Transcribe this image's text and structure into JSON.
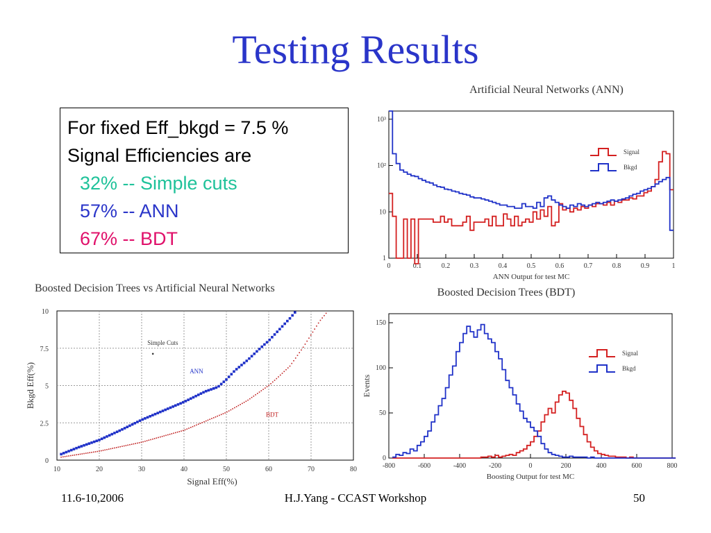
{
  "slide": {
    "title": "Testing Results",
    "box": {
      "line1": "For fixed Eff_bkgd = 7.5 %",
      "line2": "Signal Efficiencies are",
      "items": [
        {
          "text": "32% -- Simple cuts",
          "color": "#1fc29a"
        },
        {
          "text": "57% -- ANN",
          "color": "#2a35c9"
        },
        {
          "text": "67% -- BDT",
          "color": "#e0106a"
        }
      ]
    },
    "footer": {
      "date": "11.6-10,2006",
      "center": "H.J.Yang - CCAST Workshop",
      "page": "50"
    }
  },
  "chart_data": [
    {
      "id": "ann",
      "type": "line",
      "title": "Artificial Neural Networks (ANN)",
      "xlabel": "ANN Output for test MC",
      "ylabel": "",
      "log_y": true,
      "xlim": [
        0,
        1
      ],
      "ylim": [
        1,
        1500
      ],
      "x_ticks": [
        "0",
        "0.1",
        "0.2",
        "0.3",
        "0.4",
        "0.5",
        "0.6",
        "0.7",
        "0.8",
        "0.9",
        "1"
      ],
      "y_ticks": [
        "1",
        "10",
        "10²",
        "10³"
      ],
      "legend": "top-right",
      "series": [
        {
          "name": "Signal",
          "color": "#d42020",
          "values": [
            25,
            8,
            1,
            1,
            7,
            1,
            7,
            0.2,
            7,
            7,
            7,
            7,
            6,
            6,
            8,
            6,
            7,
            5,
            5,
            5,
            6,
            8,
            4,
            6,
            6,
            6,
            7,
            5,
            8,
            5,
            5,
            9,
            7,
            5,
            8,
            5,
            6,
            7,
            6,
            10,
            7,
            11,
            8,
            13,
            5,
            6,
            15,
            11,
            12,
            10,
            12,
            11,
            13,
            12,
            14,
            13,
            15,
            15,
            14,
            16,
            14,
            17,
            16,
            18,
            18,
            20,
            19,
            22,
            22,
            26,
            28,
            35,
            50,
            120,
            200,
            180,
            30
          ]
        },
        {
          "name": "Bkgd",
          "color": "#1f31c8",
          "values": [
            1500,
            180,
            110,
            80,
            72,
            65,
            60,
            58,
            52,
            48,
            44,
            42,
            38,
            35,
            34,
            31,
            30,
            28,
            27,
            25,
            24,
            23,
            21,
            20,
            20,
            19,
            18,
            17,
            16,
            15,
            14,
            14,
            13,
            13,
            12,
            12,
            15,
            13,
            13,
            12,
            16,
            13,
            20,
            22,
            18,
            16,
            14,
            13,
            12,
            14,
            13,
            15,
            14,
            13,
            14,
            15,
            16,
            15,
            16,
            17,
            18,
            17,
            18,
            19,
            20,
            22,
            24,
            25,
            28,
            30,
            32,
            35,
            40,
            45,
            50,
            55,
            4
          ]
        }
      ]
    },
    {
      "id": "eff",
      "type": "scatter",
      "title": "Boosted Decision Trees vs Artificial Neural Networks",
      "xlabel": "Signal Eff(%)",
      "ylabel": "Bkgd Eff(%)",
      "xlim": [
        10,
        80
      ],
      "ylim": [
        0,
        10
      ],
      "x_ticks": [
        "10",
        "20",
        "30",
        "40",
        "50",
        "60",
        "70",
        "80"
      ],
      "y_ticks": [
        "0",
        "2.5",
        "5",
        "7.5",
        "10"
      ],
      "grid": true,
      "annotations": [
        {
          "text": "Simple Cuts",
          "x": 32,
          "y": 7.9
        },
        {
          "text": "ANN",
          "x": 42,
          "y": 6.0,
          "color": "#1f31c8"
        },
        {
          "text": "BDT",
          "x": 60,
          "y": 3.1,
          "color": "#c02020"
        }
      ],
      "points": [
        {
          "name": "Simple Cuts",
          "x": 32,
          "y": 7.5
        }
      ],
      "series": [
        {
          "name": "ANN",
          "color": "#1f31c8",
          "x": [
            11,
            15,
            20,
            25,
            30,
            35,
            40,
            45,
            48,
            50,
            52,
            55,
            58,
            60,
            63,
            65,
            66.5
          ],
          "y": [
            0.4,
            0.85,
            1.35,
            2.0,
            2.7,
            3.3,
            3.9,
            4.6,
            4.9,
            5.4,
            6.0,
            6.7,
            7.5,
            8.0,
            8.9,
            9.5,
            10.0
          ]
        },
        {
          "name": "BDT",
          "color": "#c02020",
          "x": [
            11,
            20,
            30,
            40,
            45,
            50,
            55,
            60,
            62,
            65,
            68,
            70,
            72,
            74
          ],
          "y": [
            0.2,
            0.6,
            1.2,
            2.0,
            2.6,
            3.2,
            4.0,
            5.0,
            5.5,
            6.3,
            7.5,
            8.4,
            9.3,
            10.0
          ]
        }
      ]
    },
    {
      "id": "bdt",
      "type": "line",
      "title": "Boosted Decision Trees (BDT)",
      "xlabel": "Boosting Output for test MC",
      "ylabel": "Events",
      "xlim": [
        -800,
        800
      ],
      "ylim": [
        0,
        160
      ],
      "x_ticks": [
        "-800",
        "-600",
        "-400",
        "-200",
        "0",
        "200",
        "400",
        "600",
        "800"
      ],
      "y_ticks": [
        "0",
        "50",
        "100",
        "150"
      ],
      "legend": "top-right",
      "series": [
        {
          "name": "Signal",
          "color": "#d42020",
          "x0": -780,
          "bin": 20,
          "values": [
            0,
            0,
            0,
            0,
            0,
            0,
            0,
            0,
            0,
            0,
            0,
            0,
            0,
            0,
            0,
            0,
            0,
            0,
            0,
            0,
            0,
            0,
            0,
            0,
            0,
            1,
            1,
            2,
            1,
            3,
            1,
            2,
            3,
            4,
            3,
            6,
            8,
            10,
            14,
            18,
            24,
            30,
            40,
            48,
            55,
            50,
            62,
            70,
            74,
            72,
            64,
            55,
            44,
            35,
            26,
            18,
            12,
            8,
            5,
            4,
            3,
            2,
            2,
            1,
            1,
            1,
            0,
            1,
            0,
            0,
            0,
            0,
            0,
            0,
            0,
            0,
            0,
            0,
            0,
            0
          ]
        },
        {
          "name": "Bkgd",
          "color": "#1f31c8",
          "x0": -780,
          "bin": 20,
          "values": [
            1,
            4,
            3,
            6,
            5,
            10,
            8,
            14,
            18,
            24,
            30,
            40,
            48,
            58,
            66,
            78,
            92,
            102,
            118,
            128,
            138,
            146,
            140,
            134,
            142,
            148,
            138,
            132,
            128,
            118,
            110,
            98,
            86,
            78,
            70,
            60,
            52,
            44,
            40,
            34,
            30,
            24,
            16,
            10,
            6,
            4,
            3,
            2,
            1,
            1,
            2,
            1,
            1,
            1,
            1,
            0,
            1,
            0,
            0,
            0,
            0,
            0,
            0,
            0,
            0,
            0,
            0,
            0,
            0,
            0,
            0,
            0,
            0,
            0,
            0,
            0,
            0,
            0,
            0,
            0
          ]
        }
      ]
    }
  ]
}
